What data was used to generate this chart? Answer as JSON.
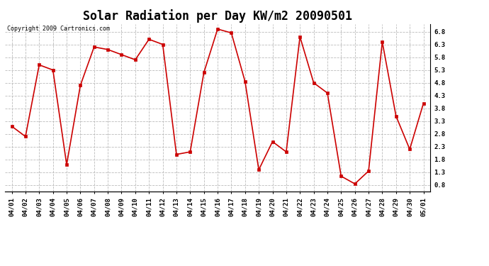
{
  "title": "Solar Radiation per Day KW/m2 20090501",
  "copyright": "Copyright 2009 Cartronics.com",
  "dates": [
    "04/01",
    "04/02",
    "04/03",
    "04/04",
    "04/05",
    "04/06",
    "04/07",
    "04/08",
    "04/09",
    "04/10",
    "04/11",
    "04/12",
    "04/13",
    "04/14",
    "04/15",
    "04/16",
    "04/17",
    "04/18",
    "04/19",
    "04/20",
    "04/21",
    "04/22",
    "04/23",
    "04/24",
    "04/25",
    "04/26",
    "04/27",
    "04/28",
    "04/29",
    "04/30",
    "05/01"
  ],
  "values": [
    3.1,
    2.7,
    5.5,
    5.3,
    1.6,
    4.7,
    6.2,
    6.1,
    5.9,
    5.7,
    6.5,
    6.3,
    2.0,
    2.1,
    5.2,
    6.9,
    6.75,
    4.85,
    1.4,
    2.5,
    2.1,
    6.6,
    4.8,
    4.4,
    1.15,
    0.85,
    1.35,
    6.4,
    3.5,
    2.2,
    4.0
  ],
  "line_color": "#cc0000",
  "marker": "s",
  "marker_size": 2.5,
  "line_width": 1.2,
  "ylim": [
    0.55,
    7.1
  ],
  "yticks": [
    0.8,
    1.3,
    1.8,
    2.3,
    2.8,
    3.3,
    3.8,
    4.3,
    4.8,
    5.3,
    5.8,
    6.3,
    6.8
  ],
  "grid_color": "#bbbbbb",
  "bg_color": "#ffffff",
  "title_fontsize": 12,
  "tick_fontsize": 6.5,
  "copyright_fontsize": 6
}
